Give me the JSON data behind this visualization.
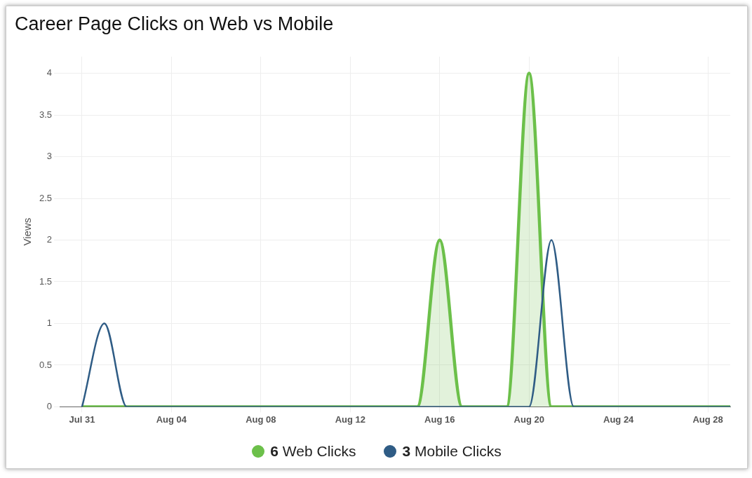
{
  "chart_data": {
    "type": "area",
    "title": "Career Page Clicks on Web vs Mobile",
    "ylabel": "Views",
    "x": [
      "--07-31",
      "--08-01",
      "--08-02",
      "--08-03",
      "--08-04",
      "--08-05",
      "--08-06",
      "--08-07",
      "--08-08",
      "--08-09",
      "--08-10",
      "--08-11",
      "--08-12",
      "--08-13",
      "--08-14",
      "--08-15",
      "--08-16",
      "--08-17",
      "--08-18",
      "--08-19",
      "--08-20",
      "--08-21",
      "--08-22",
      "--08-23",
      "--08-24",
      "--08-25",
      "--08-26",
      "--08-27",
      "--08-28",
      "--08-29"
    ],
    "series": [
      {
        "name": "6 Web Clicks",
        "color": "#6cc04a",
        "values": [
          0,
          0,
          0,
          0,
          0,
          0,
          0,
          0,
          0,
          0,
          0,
          0,
          0,
          0,
          0,
          0,
          2,
          0,
          0,
          0,
          4,
          0,
          0,
          0,
          0,
          0,
          0,
          0,
          0,
          0
        ]
      },
      {
        "name": "3 Mobile Clicks",
        "type": "line",
        "color": "#2f5c85",
        "values": [
          0,
          1,
          0,
          0,
          0,
          0,
          0,
          0,
          0,
          0,
          0,
          0,
          0,
          0,
          0,
          0,
          0,
          0,
          0,
          0,
          0,
          2,
          0,
          0,
          0,
          0,
          0,
          0,
          0,
          0
        ]
      }
    ],
    "xlim": [
      "--07-30",
      "--08-29"
    ],
    "xticks": [
      {
        "value": "--07-31",
        "label": "Jul 31"
      },
      {
        "value": "--08-04",
        "label": "Aug 04"
      },
      {
        "value": "--08-08",
        "label": "Aug 08"
      },
      {
        "value": "--08-12",
        "label": "Aug 12"
      },
      {
        "value": "--08-16",
        "label": "Aug 16"
      },
      {
        "value": "--08-20",
        "label": "Aug 20"
      },
      {
        "value": "--08-24",
        "label": "Aug 24"
      },
      {
        "value": "--08-28",
        "label": "Aug 28"
      }
    ],
    "ylim": [
      0,
      4.2
    ],
    "yticks": [
      0,
      0.5,
      1,
      1.5,
      2,
      2.5,
      3,
      3.5,
      4
    ],
    "grid": true,
    "legend": "bottom",
    "marker": "none",
    "line_style": "solid"
  }
}
